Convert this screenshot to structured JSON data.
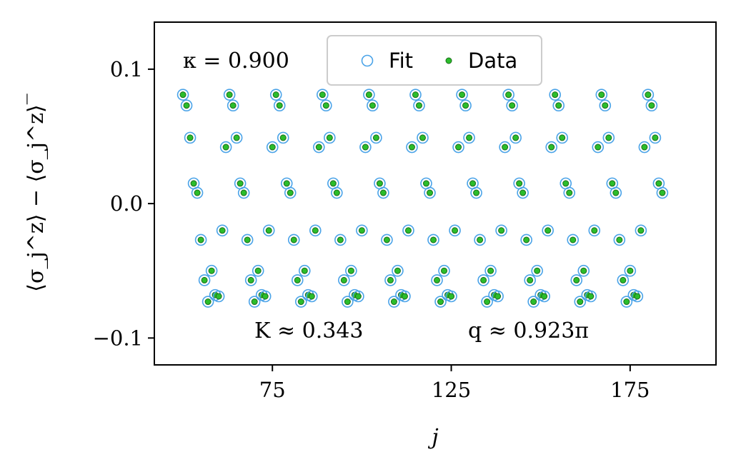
{
  "chart_data": {
    "type": "scatter",
    "xlabel": "j",
    "ylabel": "⟨σ_j^z⟩ − ⟨σ_j^z⟩‾",
    "x_ticks": [
      75,
      125,
      175
    ],
    "x_tick_labels": [
      "75",
      "125",
      "175"
    ],
    "y_ticks": [
      0.1,
      0.0,
      -0.1
    ],
    "y_tick_labels": [
      "0.1",
      "0.0",
      "−0.1"
    ],
    "xlim": [
      42,
      199
    ],
    "ylim": [
      -0.12,
      0.135
    ],
    "grid": false,
    "legend_position": "top-center",
    "annotations": {
      "kappa": "κ = 0.900",
      "K": "K ≈ 0.343",
      "q": "q ≈ 0.923π"
    },
    "period": 13,
    "pattern": [
      0.081,
      0.073,
      0.049,
      0.015,
      0.008,
      -0.027,
      -0.057,
      -0.073,
      -0.05,
      -0.068,
      -0.069,
      -0.02,
      0.042
    ],
    "x_start": 50,
    "x_end": 184,
    "series": [
      {
        "name": "Fit",
        "marker": "open-circle",
        "color": "#4aa3e8"
      },
      {
        "name": "Data",
        "marker": "filled-dot",
        "color": "#2bbd2b"
      }
    ],
    "colors": {
      "fit": "#4aa3e8",
      "data": "#2bbd2b",
      "data_edge": "#1a6b1a"
    }
  }
}
